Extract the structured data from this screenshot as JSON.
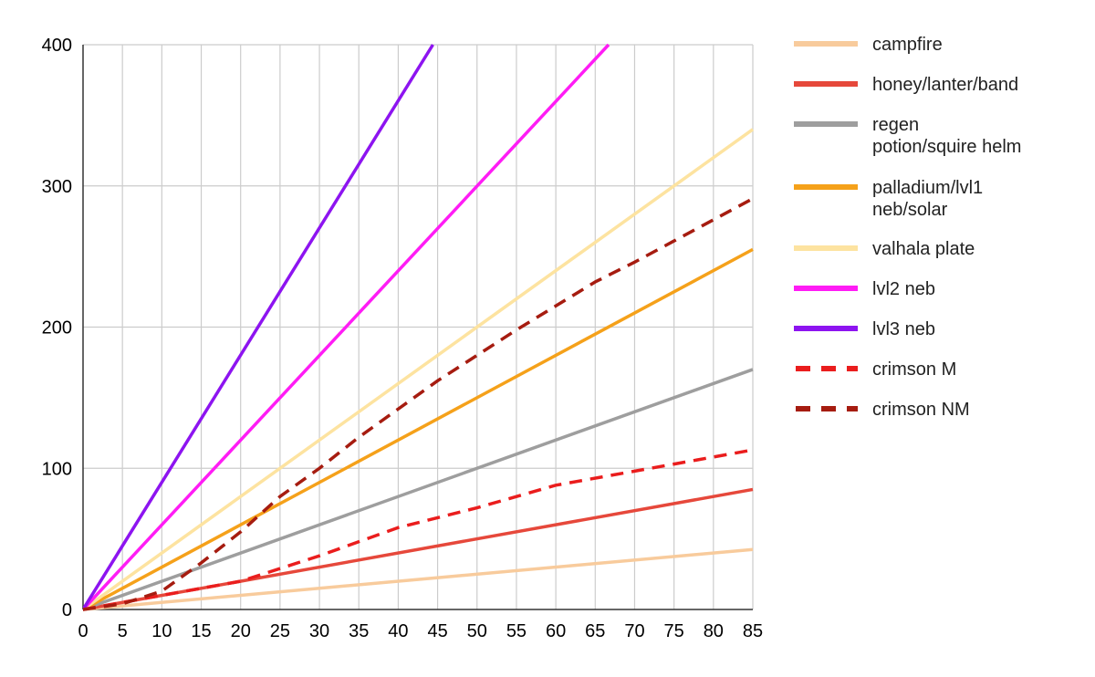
{
  "chart_data": {
    "type": "line",
    "title": "",
    "xlabel": "",
    "ylabel": "",
    "xlim": [
      0,
      85
    ],
    "ylim": [
      0,
      400
    ],
    "x_ticks": [
      "0",
      "5",
      "10",
      "15",
      "20",
      "25",
      "30",
      "35",
      "40",
      "45",
      "50",
      "55",
      "60",
      "65",
      "70",
      "75",
      "80",
      "85"
    ],
    "y_ticks": [
      "0",
      "100",
      "200",
      "300",
      "400"
    ],
    "grid": true,
    "legend_position": "right",
    "series": [
      {
        "name": "campfire",
        "color": "#f8cb9c",
        "dashed": false,
        "x": [
          0,
          85
        ],
        "y": [
          0,
          42.5
        ]
      },
      {
        "name": "honey/lanter/band",
        "color": "#e6483b",
        "dashed": false,
        "x": [
          0,
          85
        ],
        "y": [
          0,
          85
        ]
      },
      {
        "name": "regen potion/squire helm",
        "color": "#9e9e9e",
        "dashed": false,
        "x": [
          0,
          85
        ],
        "y": [
          0,
          170
        ]
      },
      {
        "name": "palladium/lvl1 neb/solar",
        "color": "#f5a11a",
        "dashed": false,
        "x": [
          0,
          85
        ],
        "y": [
          0,
          255
        ]
      },
      {
        "name": "valhala plate",
        "color": "#fde3a0",
        "dashed": false,
        "x": [
          0,
          85
        ],
        "y": [
          0,
          340
        ]
      },
      {
        "name": "lvl2 neb",
        "color": "#ff1cf5",
        "dashed": false,
        "x": [
          0,
          66.7
        ],
        "y": [
          0,
          400
        ]
      },
      {
        "name": "lvl3 neb",
        "color": "#8d14f0",
        "dashed": false,
        "x": [
          0,
          44.4
        ],
        "y": [
          0,
          400
        ]
      },
      {
        "name": "crimson M",
        "color": "#ea1d1d",
        "dashed": true,
        "x": [
          0,
          10,
          20,
          30,
          40,
          50,
          60,
          70,
          80,
          85
        ],
        "y": [
          0,
          10,
          20,
          38,
          58,
          72,
          88,
          98,
          108,
          113
        ]
      },
      {
        "name": "crimson NM",
        "color": "#a61c10",
        "dashed": true,
        "x": [
          0,
          5,
          10,
          15,
          20,
          25,
          30,
          35,
          40,
          45,
          50,
          55,
          60,
          65,
          70,
          75,
          80,
          85
        ],
        "y": [
          0,
          4,
          13,
          33,
          55,
          80,
          100,
          122,
          142,
          162,
          180,
          198,
          215,
          232,
          246,
          261,
          276,
          291
        ]
      }
    ],
    "legend": [
      {
        "lines": [
          "campfire"
        ]
      },
      {
        "lines": [
          "honey/lanter/band"
        ]
      },
      {
        "lines": [
          "regen",
          "potion/squire helm"
        ]
      },
      {
        "lines": [
          "palladium/lvl1",
          "neb/solar"
        ]
      },
      {
        "lines": [
          "valhala plate"
        ]
      },
      {
        "lines": [
          "lvl2 neb"
        ]
      },
      {
        "lines": [
          "lvl3 neb"
        ]
      },
      {
        "lines": [
          "crimson M"
        ]
      },
      {
        "lines": [
          "crimson NM"
        ]
      }
    ]
  }
}
